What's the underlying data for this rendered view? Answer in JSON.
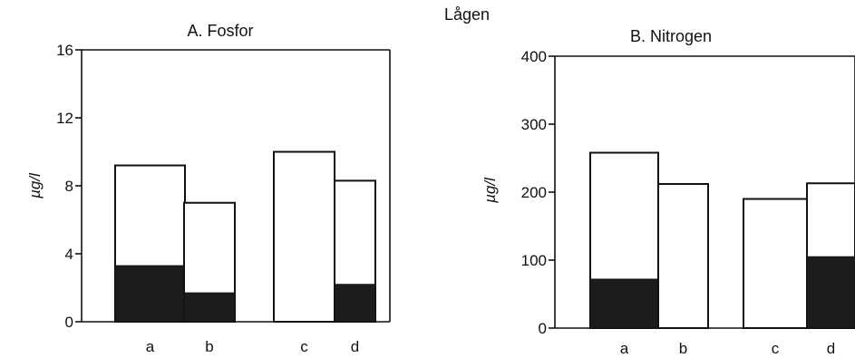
{
  "figure": {
    "header": "Lågen"
  },
  "chart_data": [
    {
      "type": "bar",
      "stacked": true,
      "title": "A. Fosfor",
      "ylabel": "µg/l",
      "xlabel": "",
      "categories": [
        "a",
        "b",
        "c",
        "d"
      ],
      "series": [
        {
          "values": [
            3.3,
            1.7,
            0,
            2.2
          ],
          "color": "#1c1c1c"
        },
        {
          "values": [
            5.9,
            5.3,
            10.0,
            6.1
          ],
          "color": "#ffffff"
        }
      ],
      "ylim": [
        0,
        16
      ],
      "yticks": [
        "0",
        "4",
        "8",
        "12",
        "16"
      ],
      "grid": false
    },
    {
      "type": "bar",
      "stacked": true,
      "title": "B. Nitrogen",
      "ylabel": "µg/l",
      "xlabel": "",
      "categories": [
        "a",
        "b",
        "c",
        "d"
      ],
      "series": [
        {
          "values": [
            72,
            0,
            0,
            105
          ],
          "color": "#1c1c1c"
        },
        {
          "values": [
            186,
            212,
            190,
            108
          ],
          "color": "#ffffff"
        }
      ],
      "ylim": [
        0,
        400
      ],
      "yticks": [
        "0",
        "100",
        "200",
        "300",
        "400"
      ],
      "grid": false
    }
  ]
}
